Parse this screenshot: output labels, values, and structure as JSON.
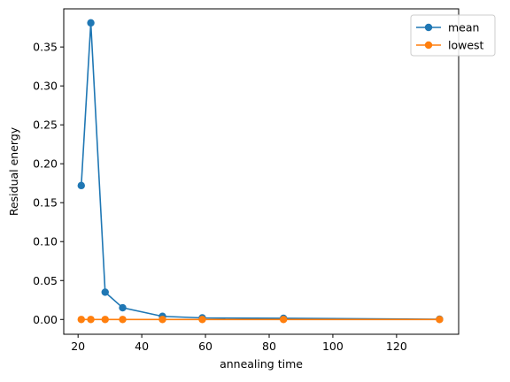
{
  "chart_data": {
    "type": "line",
    "title": "",
    "xlabel": "annealing time",
    "ylabel": "Residual energy",
    "xlim": [
      15.5,
      139.5
    ],
    "ylim": [
      -0.019,
      0.399
    ],
    "xticks": [
      20,
      40,
      60,
      80,
      100,
      120
    ],
    "yticks": [
      0.0,
      0.05,
      0.1,
      0.15,
      0.2,
      0.25,
      0.3,
      0.35
    ],
    "xtick_labels": [
      "20",
      "40",
      "60",
      "80",
      "100",
      "120"
    ],
    "ytick_labels": [
      "0.00",
      "0.05",
      "0.10",
      "0.15",
      "0.20",
      "0.25",
      "0.30",
      "0.35"
    ],
    "grid": false,
    "legend_position": "top-right",
    "series": [
      {
        "name": "mean",
        "color": "#1f77b4",
        "x": [
          21,
          24,
          28.5,
          34,
          46.5,
          59,
          84.5,
          133.5
        ],
        "y": [
          0.172,
          0.381,
          0.035,
          0.015,
          0.004,
          0.002,
          0.0015,
          0.0003
        ]
      },
      {
        "name": "lowest",
        "color": "#ff7f0e",
        "x": [
          21,
          24,
          28.5,
          34,
          46.5,
          59,
          84.5,
          133.5
        ],
        "y": [
          0.0,
          0.0,
          0.0,
          0.0,
          0.0,
          0.0,
          0.0,
          0.0
        ]
      }
    ]
  }
}
